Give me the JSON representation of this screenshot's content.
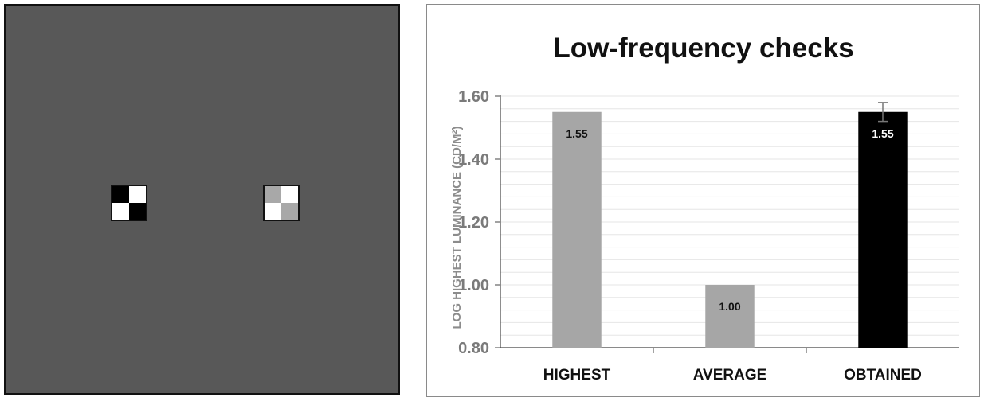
{
  "stimulus": {
    "background_color": "#585858",
    "checkers": [
      {
        "name": "left-checker",
        "cells": [
          "#000000",
          "#ffffff",
          "#ffffff",
          "#000000"
        ]
      },
      {
        "name": "right-checker",
        "cells": [
          "#a8a8a8",
          "#ffffff",
          "#ffffff",
          "#a8a8a8"
        ]
      }
    ]
  },
  "chart_data": {
    "type": "bar",
    "title": "Low-frequency checks",
    "ylabel": "LOG HIGHEST LUMINANCE (CD/M²)",
    "xlabel": "",
    "categories": [
      "HIGHEST",
      "AVERAGE",
      "OBTAINED"
    ],
    "values": [
      1.55,
      1.0,
      1.55
    ],
    "data_labels": [
      "1.55",
      "1.00",
      "1.55"
    ],
    "bar_colors": [
      "#a6a6a6",
      "#a6a6a6",
      "#000000"
    ],
    "data_label_colors": [
      "#111111",
      "#111111",
      "#ffffff"
    ],
    "error_bars": [
      null,
      null,
      0.03
    ],
    "ylim": [
      0.8,
      1.6
    ],
    "yticks": [
      "0.80",
      "1.00",
      "1.20",
      "1.40",
      "1.60"
    ],
    "ytick_values": [
      0.8,
      1.0,
      1.2,
      1.4,
      1.6
    ],
    "grid": true,
    "minor_grid_step": 0.04
  }
}
